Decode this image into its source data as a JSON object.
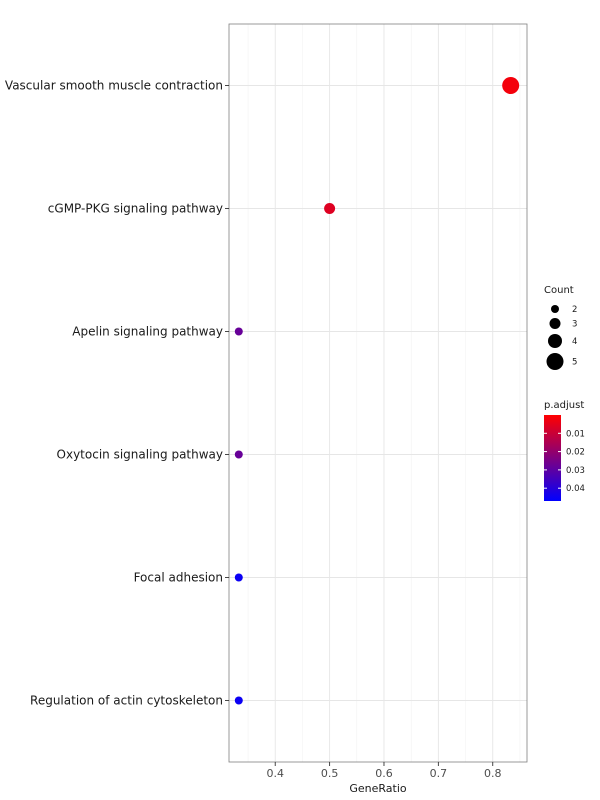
{
  "chart_data": {
    "type": "scatter",
    "xlabel": "GeneRatio",
    "ylabel": "",
    "xlim": [
      0.315,
      0.863
    ],
    "xticks": [
      0.4,
      0.5,
      0.6,
      0.7,
      0.8
    ],
    "xtick_labels": [
      "0.4",
      "0.5",
      "0.6",
      "0.7",
      "0.8"
    ],
    "grid": true,
    "legend_position": "right",
    "categories": [
      "Vascular smooth muscle contraction",
      "cGMP-PKG signaling pathway",
      "Apelin signaling pathway",
      "Oxytocin signaling pathway",
      "Focal adhesion",
      "Regulation of actin cytoskeleton"
    ],
    "points": [
      {
        "category": "Vascular smooth muscle contraction",
        "x": 0.833,
        "count": 5,
        "p_adjust": 0.002
      },
      {
        "category": "cGMP-PKG signaling pathway",
        "x": 0.5,
        "count": 3,
        "p_adjust": 0.006
      },
      {
        "category": "Apelin signaling pathway",
        "x": 0.333,
        "count": 2,
        "p_adjust": 0.028
      },
      {
        "category": "Oxytocin signaling pathway",
        "x": 0.333,
        "count": 2,
        "p_adjust": 0.028
      },
      {
        "category": "Focal adhesion",
        "x": 0.333,
        "count": 2,
        "p_adjust": 0.045
      },
      {
        "category": "Regulation of actin cytoskeleton",
        "x": 0.333,
        "count": 2,
        "p_adjust": 0.045
      }
    ],
    "size_legend": {
      "title": "Count",
      "values": [
        2,
        3,
        4,
        5
      ],
      "labels": [
        "2",
        "3",
        "4",
        "5"
      ]
    },
    "color_legend": {
      "title": "p.adjust",
      "low_color": "#ff0000",
      "high_color": "#0000ff",
      "range": [
        0.0,
        0.047
      ],
      "ticks": [
        0.01,
        0.02,
        0.03,
        0.04
      ],
      "tick_labels": [
        "0.01",
        "0.02",
        "0.03",
        "0.04"
      ]
    }
  }
}
